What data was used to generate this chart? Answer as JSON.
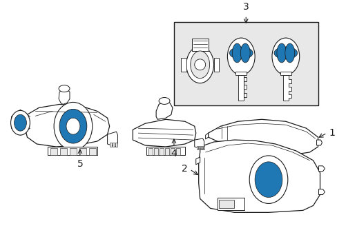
{
  "bg_color": "#ffffff",
  "line_color": "#1a1a1a",
  "gray_fill": "#d4d4d4",
  "light_gray": "#e8e8e8",
  "fig_width": 4.89,
  "fig_height": 3.6,
  "dpi": 100,
  "label_fontsize": 10,
  "label_color": "#000000"
}
